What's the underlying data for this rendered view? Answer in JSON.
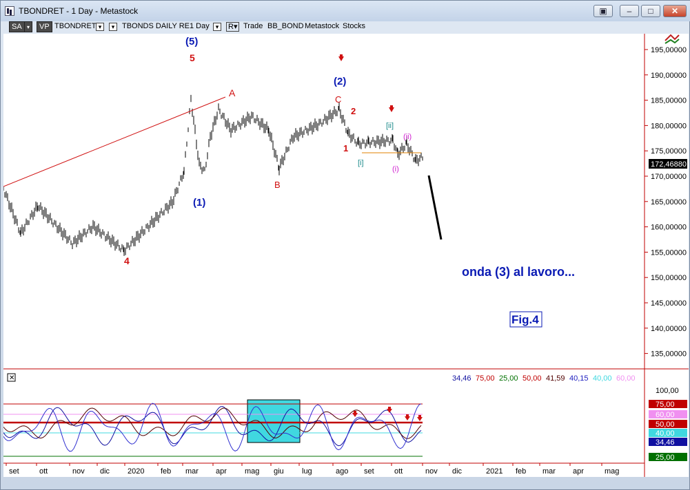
{
  "window": {
    "title": "TBONDRET - 1 Day - Metastock",
    "btn_restore_extra": "▣",
    "btn_min": "–",
    "btn_max": "□",
    "btn_close": "✕"
  },
  "toolbar": {
    "sa": "SA",
    "vp": "VP",
    "symbol": "TBONDRET",
    "name": "TBONDS DAILY RE",
    "period": "1 Day",
    "r": "R",
    "trade": "Trade",
    "expert": "BB_BOND",
    "metastock": "Metastock",
    "stocks": "Stocks"
  },
  "price_axis": {
    "labels": [
      "195,00000",
      "190,00000",
      "185,00000",
      "180,00000",
      "175,00000",
      "170,00000",
      "165,00000",
      "160,00000",
      "155,00000",
      "150,00000",
      "145,00000",
      "140,00000",
      "135,00000"
    ],
    "current": "172,46880"
  },
  "wave_labels": {
    "w5_blue": "(5)",
    "w5_red": "5",
    "a": "A",
    "w4": "4",
    "w1": "(1)",
    "b": "B",
    "w2": "(2)",
    "c": "C",
    "r2": "2",
    "r1": "1",
    "ii_teal": "[ii]",
    "i_teal": "[i]",
    "ii_pink": "(ii)",
    "i_pink": "(i)"
  },
  "annotations": {
    "onda": "onda (3) al lavoro...",
    "fig": "Fig.4"
  },
  "indicator": {
    "close_x": "✕",
    "values": [
      {
        "text": "34,46",
        "color": "#1010a0"
      },
      {
        "text": "75,00",
        "color": "#c00000"
      },
      {
        "text": "25,00",
        "color": "#007000"
      },
      {
        "text": "50,00",
        "color": "#c00000"
      },
      {
        "text": "41,59",
        "color": "#500000"
      },
      {
        "text": "40,15",
        "color": "#2020c0"
      },
      {
        "text": "40,00",
        "color": "#40d8e0"
      },
      {
        "text": "60,00",
        "color": "#f090f0"
      }
    ],
    "axis": {
      "top": "100,00",
      "l75": "75,00",
      "l60": "60,00",
      "l50": "50,00",
      "l40": "40,00",
      "l34": "34,46",
      "l25": "25,00"
    }
  },
  "time_axis": [
    "set",
    "ott",
    "nov",
    "dic",
    "2020",
    "feb",
    "mar",
    "apr",
    "mag",
    "giu",
    "lug",
    "ago",
    "set",
    "ott",
    "nov",
    "dic",
    "2021",
    "feb",
    "mar",
    "apr",
    "mag"
  ],
  "colors": {
    "blue_label": "#0a1ab4",
    "red_label": "#d01010",
    "teal_label": "#1a8a8a",
    "pink_label": "#d020d0"
  }
}
